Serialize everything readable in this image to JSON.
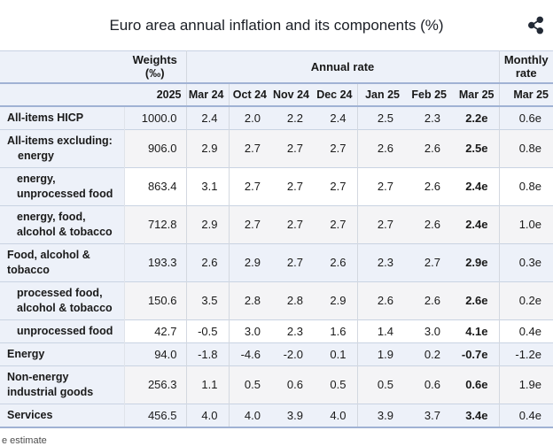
{
  "title": "Euro area annual inflation and its components (%)",
  "icons": {
    "share": "share-network"
  },
  "table": {
    "header": {
      "weights_label": "Weights (‰)",
      "annual_rate_label": "Annual rate",
      "monthly_rate_label": "Monthly rate",
      "weights_year": "2025",
      "annual_months": [
        "Mar 24",
        "Oct 24",
        "Nov 24",
        "Dec 24",
        "Jan 25",
        "Feb 25",
        "Mar 25"
      ],
      "monthly_month": "Mar 25"
    },
    "rows": [
      {
        "label": "All-items HICP",
        "indent": "lvl0",
        "shade": "r-blue",
        "weight": "1000.0",
        "values": [
          "2.4",
          "2.0",
          "2.2",
          "2.4",
          "2.5",
          "2.3",
          "2.2e"
        ],
        "monthly": "0.6e"
      },
      {
        "label": "All-items excluding: energy",
        "indent": "lvl0h",
        "shade": "r-gray",
        "weight": "906.0",
        "values": [
          "2.9",
          "2.7",
          "2.7",
          "2.7",
          "2.6",
          "2.6",
          "2.5e"
        ],
        "monthly": "0.8e"
      },
      {
        "label": "energy, unprocessed food",
        "indent": "lvl1",
        "shade": "r-white",
        "weight": "863.4",
        "values": [
          "3.1",
          "2.7",
          "2.7",
          "2.7",
          "2.7",
          "2.6",
          "2.4e"
        ],
        "monthly": "0.8e"
      },
      {
        "label": "energy, food, alcohol & tobacco",
        "indent": "lvl1",
        "shade": "r-gray",
        "weight": "712.8",
        "values": [
          "2.9",
          "2.7",
          "2.7",
          "2.7",
          "2.7",
          "2.6",
          "2.4e"
        ],
        "monthly": "1.0e"
      },
      {
        "label": "Food, alcohol & tobacco",
        "indent": "lvl0",
        "shade": "r-blue",
        "weight": "193.3",
        "values": [
          "2.6",
          "2.9",
          "2.7",
          "2.6",
          "2.3",
          "2.7",
          "2.9e"
        ],
        "monthly": "0.3e"
      },
      {
        "label": "processed food, alcohol & tobacco",
        "indent": "lvl1",
        "shade": "r-gray",
        "weight": "150.6",
        "values": [
          "3.5",
          "2.8",
          "2.8",
          "2.9",
          "2.6",
          "2.6",
          "2.6e"
        ],
        "monthly": "0.2e"
      },
      {
        "label": "unprocessed food",
        "indent": "lvl1",
        "shade": "r-white",
        "weight": "42.7",
        "values": [
          "-0.5",
          "3.0",
          "2.3",
          "1.6",
          "1.4",
          "3.0",
          "4.1e"
        ],
        "monthly": "0.4e"
      },
      {
        "label": "Energy",
        "indent": "lvl0",
        "shade": "r-blue",
        "weight": "94.0",
        "values": [
          "-1.8",
          "-4.6",
          "-2.0",
          "0.1",
          "1.9",
          "0.2",
          "-0.7e"
        ],
        "monthly": "-1.2e"
      },
      {
        "label": "Non-energy industrial goods",
        "indent": "lvl0",
        "shade": "r-gray",
        "weight": "256.3",
        "values": [
          "1.1",
          "0.5",
          "0.6",
          "0.5",
          "0.5",
          "0.6",
          "0.6e"
        ],
        "monthly": "1.9e"
      },
      {
        "label": "Services",
        "indent": "lvl0",
        "shade": "r-blue",
        "weight": "456.5",
        "values": [
          "4.0",
          "4.0",
          "3.9",
          "4.0",
          "3.9",
          "3.7",
          "3.4e"
        ],
        "monthly": "0.4e"
      }
    ]
  },
  "footnote": "e estimate",
  "chart_data": {
    "type": "table",
    "title": "Euro area annual inflation and its components (%)",
    "weights_column": "Weights (‰) 2025",
    "annual_rate_columns": [
      "Mar 24",
      "Oct 24",
      "Nov 24",
      "Dec 24",
      "Jan 25",
      "Feb 25",
      "Mar 25"
    ],
    "monthly_rate_column": "Mar 25",
    "estimated_columns": [
      "Mar 25 annual rate",
      "Mar 25 monthly rate"
    ],
    "rows": [
      {
        "component": "All-items HICP",
        "weight_2025": 1000.0,
        "annual_rate": [
          2.4,
          2.0,
          2.2,
          2.4,
          2.5,
          2.3,
          2.2
        ],
        "monthly_rate": 0.6
      },
      {
        "component": "All-items excluding: energy",
        "weight_2025": 906.0,
        "annual_rate": [
          2.9,
          2.7,
          2.7,
          2.7,
          2.6,
          2.6,
          2.5
        ],
        "monthly_rate": 0.8
      },
      {
        "component": "energy, unprocessed food",
        "weight_2025": 863.4,
        "annual_rate": [
          3.1,
          2.7,
          2.7,
          2.7,
          2.7,
          2.6,
          2.4
        ],
        "monthly_rate": 0.8
      },
      {
        "component": "energy, food, alcohol & tobacco",
        "weight_2025": 712.8,
        "annual_rate": [
          2.9,
          2.7,
          2.7,
          2.7,
          2.7,
          2.6,
          2.4
        ],
        "monthly_rate": 1.0
      },
      {
        "component": "Food, alcohol & tobacco",
        "weight_2025": 193.3,
        "annual_rate": [
          2.6,
          2.9,
          2.7,
          2.6,
          2.3,
          2.7,
          2.9
        ],
        "monthly_rate": 0.3
      },
      {
        "component": "processed food, alcohol & tobacco",
        "weight_2025": 150.6,
        "annual_rate": [
          3.5,
          2.8,
          2.8,
          2.9,
          2.6,
          2.6,
          2.6
        ],
        "monthly_rate": 0.2
      },
      {
        "component": "unprocessed food",
        "weight_2025": 42.7,
        "annual_rate": [
          -0.5,
          3.0,
          2.3,
          1.6,
          1.4,
          3.0,
          4.1
        ],
        "monthly_rate": 0.4
      },
      {
        "component": "Energy",
        "weight_2025": 94.0,
        "annual_rate": [
          -1.8,
          -4.6,
          -2.0,
          0.1,
          1.9,
          0.2,
          -0.7
        ],
        "monthly_rate": -1.2
      },
      {
        "component": "Non-energy industrial goods",
        "weight_2025": 256.3,
        "annual_rate": [
          1.1,
          0.5,
          0.6,
          0.5,
          0.5,
          0.6,
          0.6
        ],
        "monthly_rate": 1.9
      },
      {
        "component": "Services",
        "weight_2025": 456.5,
        "annual_rate": [
          4.0,
          4.0,
          3.9,
          4.0,
          3.9,
          3.7,
          3.4
        ],
        "monthly_rate": 0.4
      }
    ],
    "footnote": "e estimate"
  },
  "colors": {
    "header_bg": "#edf1f9",
    "row_blue": "#edf1f9",
    "row_gray": "#f4f4f6",
    "row_white": "#ffffff",
    "separator_strong": "#a0b2d4",
    "separator_light": "#c9d3e2",
    "column_divider": "#d3d8e0",
    "text": "#1a1a1a",
    "icon": "#232a36"
  }
}
